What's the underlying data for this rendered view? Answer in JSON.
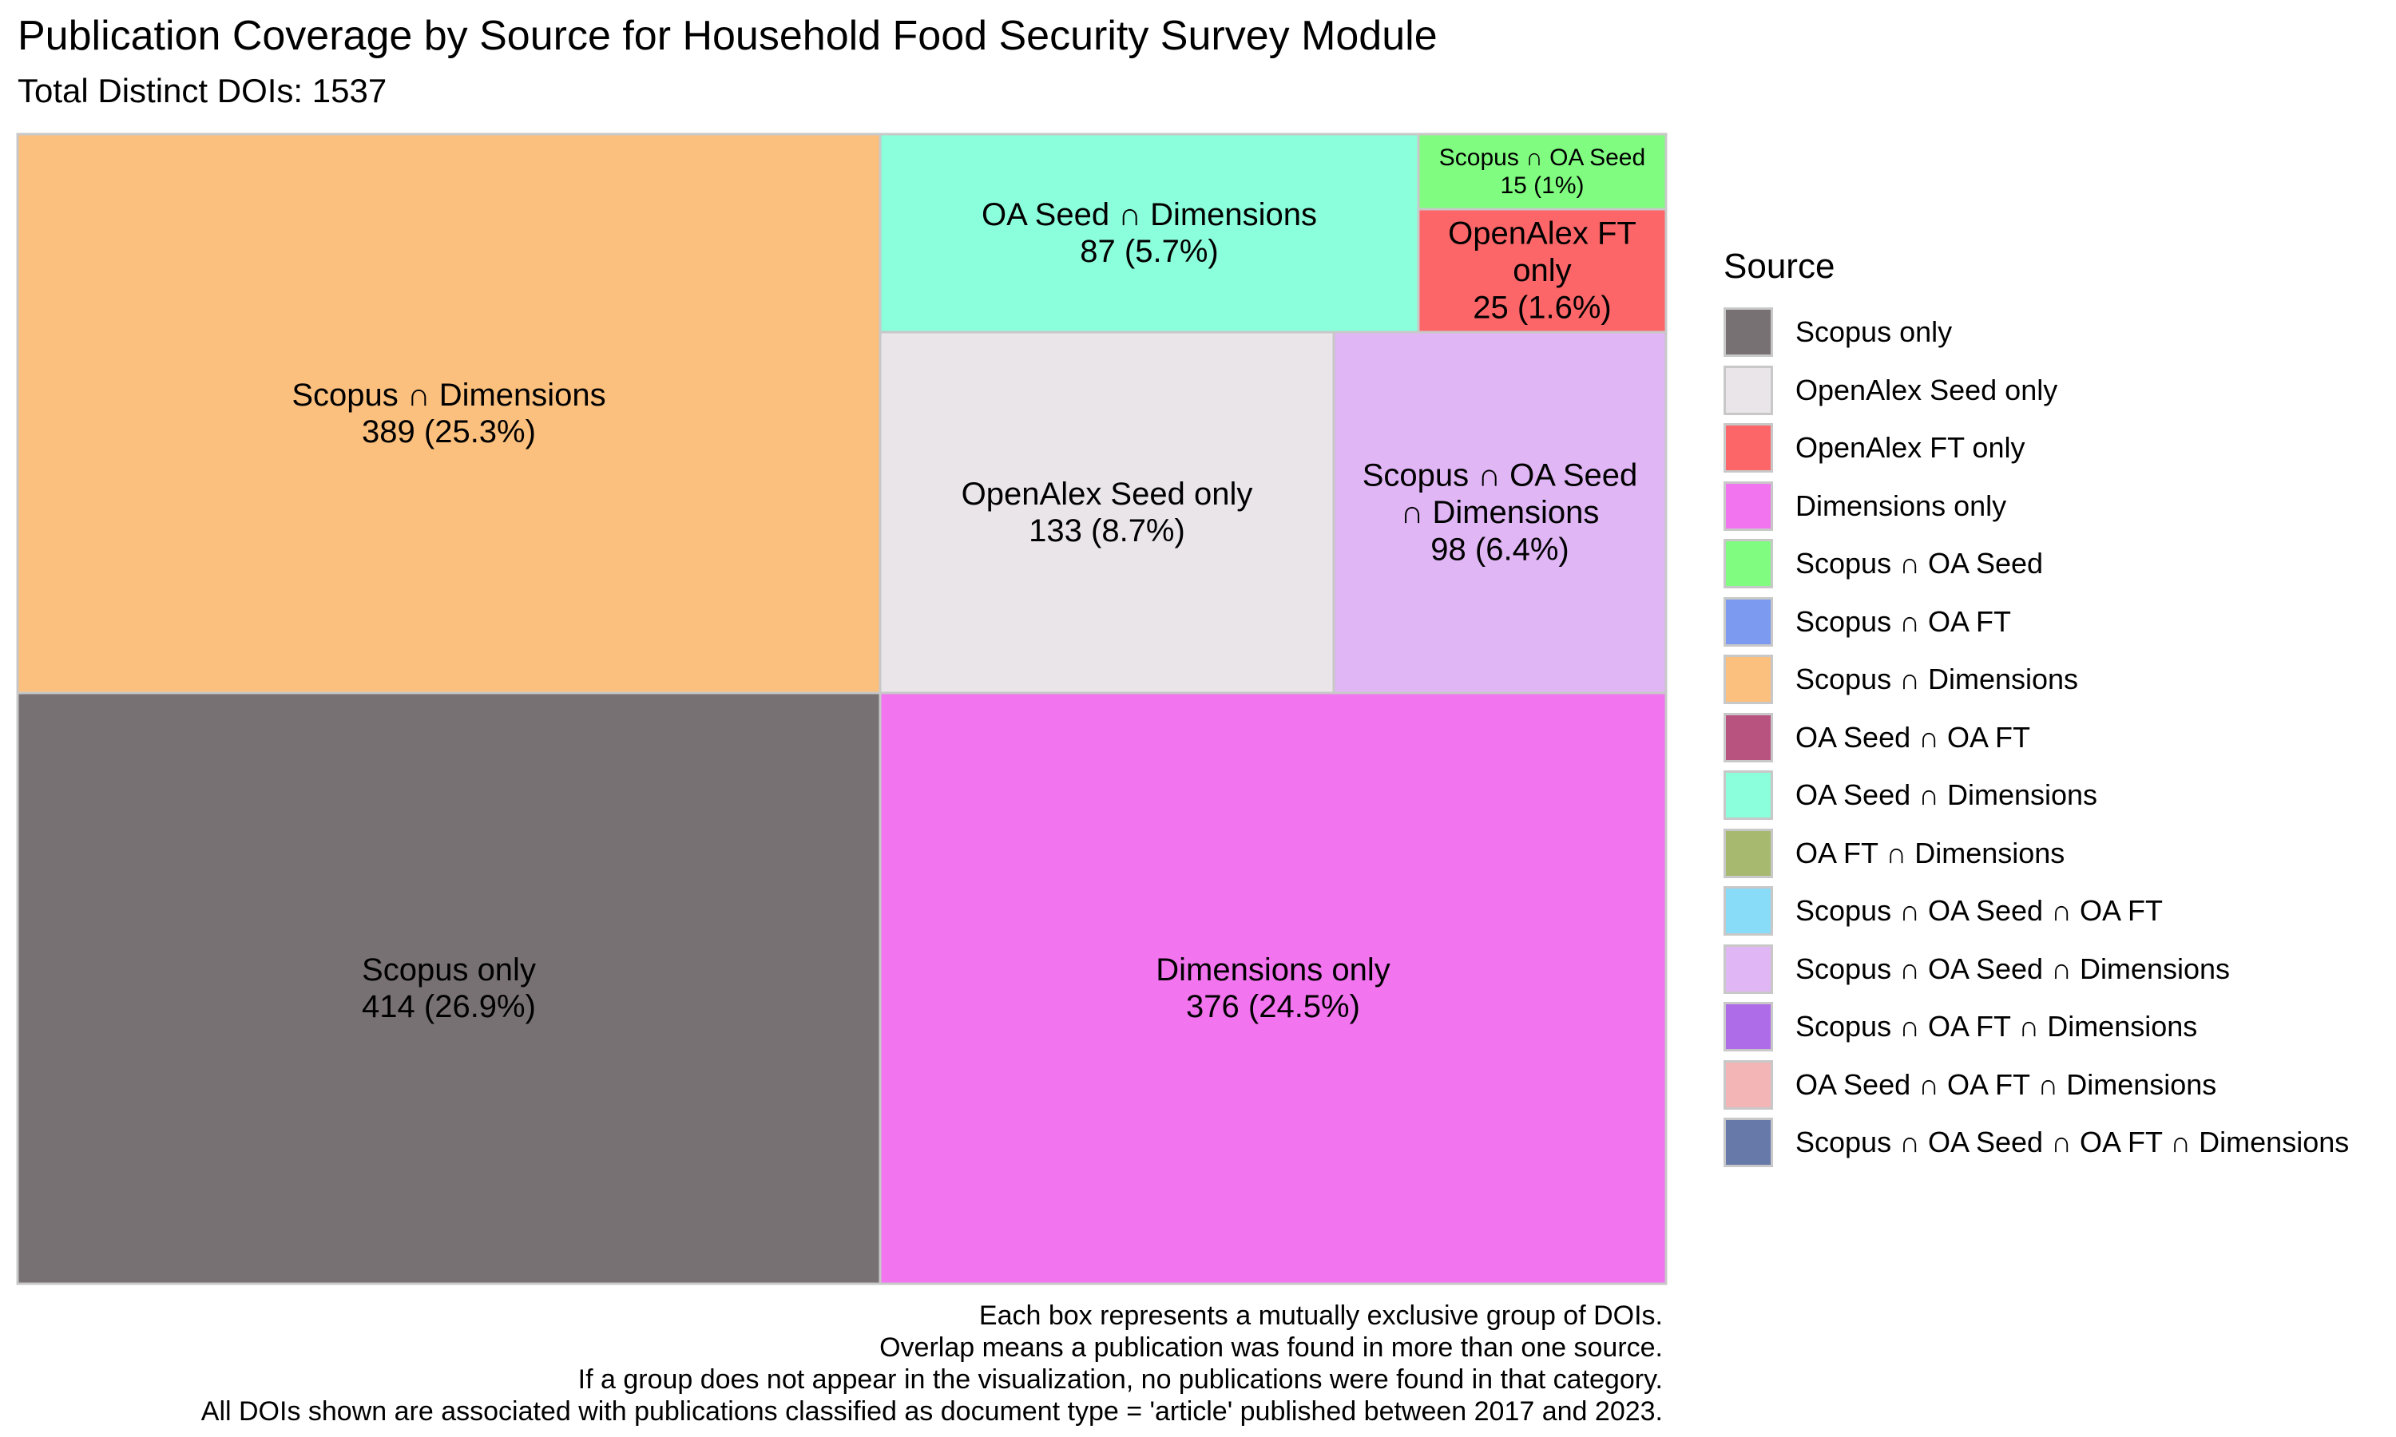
{
  "chart_data": {
    "type": "treemap",
    "title": "Publication Coverage by Source for Household Food Security Survey Module",
    "subtitle": "Total Distinct DOIs: 1537",
    "total": 1537,
    "legend_title": "Source",
    "legend_position": "right",
    "tiles": [
      {
        "name": "Scopus only",
        "value": 414,
        "label_lines": [
          "Scopus only",
          "414 (26.9%)"
        ],
        "color": "#787173"
      },
      {
        "name": "Scopus ∩ Dimensions",
        "value": 389,
        "label_lines": [
          "Scopus ∩ Dimensions",
          "389 (25.3%)"
        ],
        "color": "#fbc07e"
      },
      {
        "name": "Dimensions only",
        "value": 376,
        "label_lines": [
          "Dimensions only",
          "376 (24.5%)"
        ],
        "color": "#f274ef"
      },
      {
        "name": "OpenAlex Seed only",
        "value": 133,
        "label_lines": [
          "OpenAlex Seed only",
          "133 (8.7%)"
        ],
        "color": "#e9e5e9"
      },
      {
        "name": "Scopus ∩ OA Seed ∩ Dimensions",
        "value": 98,
        "label_lines": [
          "Scopus ∩ OA Seed",
          "∩ Dimensions",
          "98 (6.4%)"
        ],
        "color": "#e0b6f5"
      },
      {
        "name": "OA Seed ∩ Dimensions",
        "value": 87,
        "label_lines": [
          "OA Seed ∩ Dimensions",
          "87 (5.7%)"
        ],
        "color": "#8bffdb"
      },
      {
        "name": "OpenAlex FT only",
        "value": 25,
        "label_lines": [
          "OpenAlex FT",
          "only",
          "25 (1.6%)"
        ],
        "color": "#fd6668"
      },
      {
        "name": "Scopus ∩ OA Seed",
        "value": 15,
        "label_lines": [
          "Scopus ∩ OA Seed",
          "15 (1%)"
        ],
        "color": "#80fd80"
      }
    ],
    "legend": [
      {
        "label": "Scopus only",
        "color": "#787173"
      },
      {
        "label": "OpenAlex Seed only",
        "color": "#e9e5e9"
      },
      {
        "label": "OpenAlex FT only",
        "color": "#fd6668"
      },
      {
        "label": "Dimensions only",
        "color": "#f274ef"
      },
      {
        "label": "Scopus ∩ OA Seed",
        "color": "#80fd80"
      },
      {
        "label": "Scopus ∩ OA FT",
        "color": "#7b9af0"
      },
      {
        "label": "Scopus ∩ Dimensions",
        "color": "#fbc07e"
      },
      {
        "label": "OA Seed ∩ OA FT",
        "color": "#b85380"
      },
      {
        "label": "OA Seed ∩ Dimensions",
        "color": "#8bffdb"
      },
      {
        "label": "OA FT ∩ Dimensions",
        "color": "#a6b96f"
      },
      {
        "label": "Scopus ∩ OA Seed ∩ OA FT",
        "color": "#89dcf8"
      },
      {
        "label": "Scopus ∩ OA Seed ∩ Dimensions",
        "color": "#e0b6f5"
      },
      {
        "label": "Scopus ∩ OA FT ∩ Dimensions",
        "color": "#af6ce8"
      },
      {
        "label": "OA Seed ∩ OA FT ∩ Dimensions",
        "color": "#f4b5b6"
      },
      {
        "label": "Scopus ∩ OA Seed ∩ OA FT ∩ Dimensions",
        "color": "#6679a9"
      }
    ],
    "notes": [
      "Each box represents a mutually exclusive group of DOIs.",
      "Overlap means a publication was found in more than one source.",
      "If a group does not appear in the visualization, no publications were found in that category.",
      "All DOIs shown are associated with publications classified as document type = 'article' published between 2017 and 2023."
    ]
  }
}
